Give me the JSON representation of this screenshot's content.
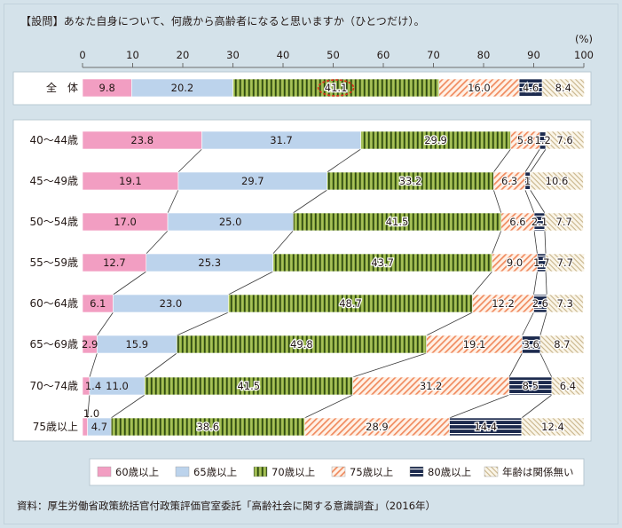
{
  "question": "【設問】あなた自身について、何歳から高齢者になると思いますか（ひとつだけ）。",
  "source": "資料：厚生労働省政策統括官付政策評価官室委託「高齢社会に関する意識調査」（2016年）",
  "colors": {
    "background": "#d4e2ea",
    "s60": "#f29ec2",
    "s65": "#bcd3ec",
    "s70": "#8aaa3c",
    "s75": "#f08b5f",
    "s80": "#1c2a4e",
    "none": "#d9c9a6"
  },
  "chart_data": {
    "type": "bar",
    "stacked": "horizontal-100-percent",
    "title": "",
    "unit_label": "(%)",
    "xlim": [
      0,
      100
    ],
    "x_ticks": [
      0,
      10,
      20,
      30,
      40,
      50,
      60,
      70,
      80,
      90,
      100
    ],
    "grid": false,
    "legend_position": "bottom",
    "highlight": {
      "category": "全　体",
      "series": "70歳以上",
      "style": "red-dashed-ellipse"
    },
    "categories": [
      "全　体",
      "40～44歳",
      "45～49歳",
      "50～54歳",
      "55～59歳",
      "60～64歳",
      "65～69歳",
      "70～74歳",
      "75歳以上"
    ],
    "series": [
      {
        "name": "60歳以上",
        "values": [
          9.8,
          23.8,
          19.1,
          17.0,
          12.7,
          6.1,
          2.9,
          1.4,
          1.0
        ]
      },
      {
        "name": "65歳以上",
        "values": [
          20.2,
          31.7,
          29.7,
          25.0,
          25.3,
          23.0,
          15.9,
          11.0,
          4.7
        ]
      },
      {
        "name": "70歳以上",
        "values": [
          41.1,
          29.9,
          33.2,
          41.5,
          43.7,
          48.7,
          49.8,
          41.5,
          38.6
        ]
      },
      {
        "name": "75歳以上",
        "values": [
          16.0,
          5.8,
          6.3,
          6.6,
          9.0,
          12.2,
          19.1,
          31.2,
          28.9
        ]
      },
      {
        "name": "80歳以上",
        "values": [
          4.6,
          1.2,
          1.0,
          2.1,
          1.7,
          2.6,
          3.6,
          8.5,
          14.4
        ]
      },
      {
        "name": "年齢は関係無い",
        "values": [
          8.4,
          7.6,
          10.6,
          7.7,
          7.7,
          7.3,
          8.7,
          6.4,
          12.4
        ]
      }
    ],
    "data_labels": [
      [
        "9.8",
        "20.2",
        "41.1",
        "16.0",
        "4.6",
        "8.4"
      ],
      [
        "23.8",
        "31.7",
        "29.9",
        "5.8",
        "1.2",
        "7.6"
      ],
      [
        "19.1",
        "29.7",
        "33.2",
        "6.3",
        "1",
        "10.6"
      ],
      [
        "17.0",
        "25.0",
        "41.5",
        "6.6",
        "2.1",
        "7.7"
      ],
      [
        "12.7",
        "25.3",
        "43.7",
        "9.0",
        "1.7",
        "7.7"
      ],
      [
        "6.1",
        "23.0",
        "48.7",
        "12.2",
        "2.6",
        "7.3"
      ],
      [
        "2.9",
        "15.9",
        "49.8",
        "19.1",
        "3.6",
        "8.7"
      ],
      [
        "1.4",
        "11.0",
        "41.5",
        "31.2",
        "8.5",
        "6.4"
      ],
      [
        "1.0",
        "4.7",
        "38.6",
        "28.9",
        "14.4",
        "12.4"
      ]
    ]
  }
}
